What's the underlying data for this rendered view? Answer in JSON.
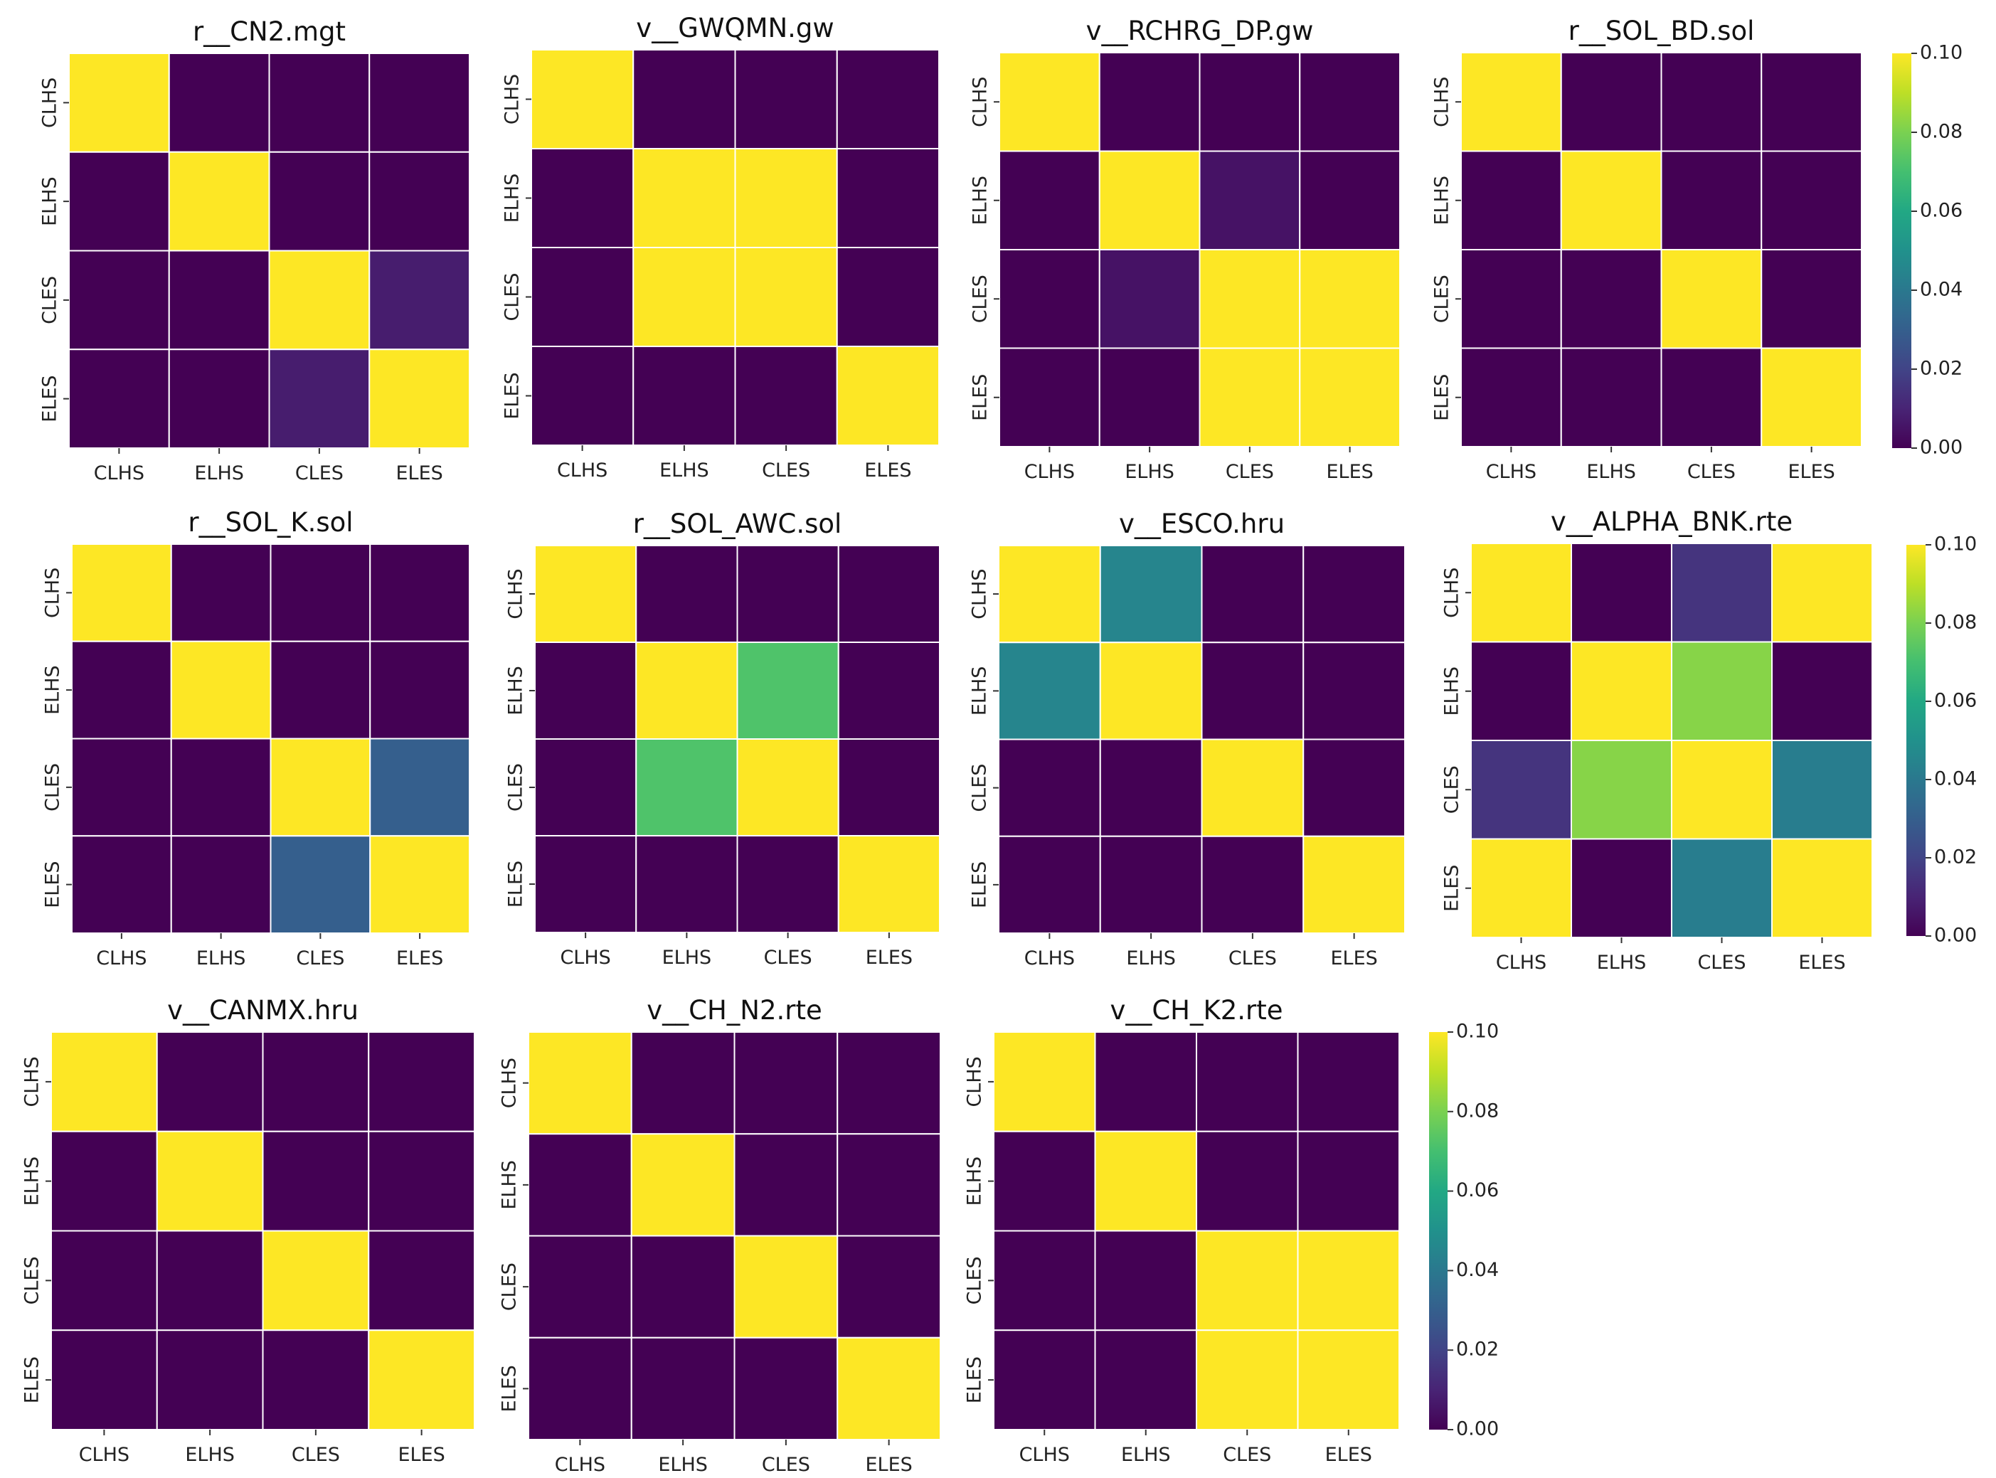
{
  "chart_data": [
    {
      "type": "heatmap",
      "title": "r__CN2.mgt",
      "x_labels": [
        "CLHS",
        "ELHS",
        "CLES",
        "ELES"
      ],
      "y_labels": [
        "CLHS",
        "ELHS",
        "CLES",
        "ELES"
      ],
      "values": [
        [
          0.1,
          0,
          0,
          0
        ],
        [
          0,
          0.1,
          0,
          0
        ],
        [
          0,
          0,
          0.1,
          0.008
        ],
        [
          0,
          0,
          0.008,
          0.1
        ]
      ]
    },
    {
      "type": "heatmap",
      "title": "v__GWQMN.gw",
      "x_labels": [
        "CLHS",
        "ELHS",
        "CLES",
        "ELES"
      ],
      "y_labels": [
        "CLHS",
        "ELHS",
        "CLES",
        "ELES"
      ],
      "values": [
        [
          0.1,
          0,
          0,
          0
        ],
        [
          0,
          0.1,
          0.1,
          0
        ],
        [
          0,
          0.1,
          0.1,
          0
        ],
        [
          0,
          0,
          0,
          0.1
        ]
      ]
    },
    {
      "type": "heatmap",
      "title": "v__RCHRG_DP.gw",
      "x_labels": [
        "CLHS",
        "ELHS",
        "CLES",
        "ELES"
      ],
      "y_labels": [
        "CLHS",
        "ELHS",
        "CLES",
        "ELES"
      ],
      "values": [
        [
          0.1,
          0,
          0,
          0
        ],
        [
          0,
          0.1,
          0.005,
          0
        ],
        [
          0,
          0.005,
          0.1,
          0.1
        ],
        [
          0,
          0,
          0.1,
          0.1
        ]
      ]
    },
    {
      "type": "heatmap",
      "title": "r__SOL_BD.sol",
      "x_labels": [
        "CLHS",
        "ELHS",
        "CLES",
        "ELES"
      ],
      "y_labels": [
        "CLHS",
        "ELHS",
        "CLES",
        "ELES"
      ],
      "values": [
        [
          0.1,
          0,
          0,
          0
        ],
        [
          0,
          0.1,
          0,
          0
        ],
        [
          0,
          0,
          0.1,
          0
        ],
        [
          0,
          0,
          0,
          0.1
        ]
      ]
    },
    {
      "type": "heatmap",
      "title": "r__SOL_K.sol",
      "x_labels": [
        "CLHS",
        "ELHS",
        "CLES",
        "ELES"
      ],
      "y_labels": [
        "CLHS",
        "ELHS",
        "CLES",
        "ELES"
      ],
      "values": [
        [
          0.1,
          0,
          0,
          0
        ],
        [
          0,
          0.1,
          0,
          0
        ],
        [
          0,
          0,
          0.1,
          0.03
        ],
        [
          0,
          0,
          0.03,
          0.1
        ]
      ]
    },
    {
      "type": "heatmap",
      "title": "r__SOL_AWC.sol",
      "x_labels": [
        "CLHS",
        "ELHS",
        "CLES",
        "ELES"
      ],
      "y_labels": [
        "CLHS",
        "ELHS",
        "CLES",
        "ELES"
      ],
      "values": [
        [
          0.1,
          0,
          0,
          0
        ],
        [
          0,
          0.1,
          0.072,
          0
        ],
        [
          0,
          0.072,
          0.1,
          0
        ],
        [
          0,
          0,
          0,
          0.1
        ]
      ]
    },
    {
      "type": "heatmap",
      "title": "v__ESCO.hru",
      "x_labels": [
        "CLHS",
        "ELHS",
        "CLES",
        "ELES"
      ],
      "y_labels": [
        "CLHS",
        "ELHS",
        "CLES",
        "ELES"
      ],
      "values": [
        [
          0.1,
          0.045,
          0,
          0
        ],
        [
          0.045,
          0.1,
          0,
          0
        ],
        [
          0,
          0,
          0.1,
          0
        ],
        [
          0,
          0,
          0,
          0.1
        ]
      ]
    },
    {
      "type": "heatmap",
      "title": "v__ALPHA_BNK.rte",
      "x_labels": [
        "CLHS",
        "ELHS",
        "CLES",
        "ELES"
      ],
      "y_labels": [
        "CLHS",
        "ELHS",
        "CLES",
        "ELES"
      ],
      "values": [
        [
          0.1,
          0,
          0.015,
          0.1
        ],
        [
          0,
          0.1,
          0.082,
          0
        ],
        [
          0.015,
          0.082,
          0.1,
          0.042
        ],
        [
          0.1,
          0,
          0.042,
          0.1
        ]
      ]
    },
    {
      "type": "heatmap",
      "title": "v__CANMX.hru",
      "x_labels": [
        "CLHS",
        "ELHS",
        "CLES",
        "ELES"
      ],
      "y_labels": [
        "CLHS",
        "ELHS",
        "CLES",
        "ELES"
      ],
      "values": [
        [
          0.1,
          0,
          0,
          0
        ],
        [
          0,
          0.1,
          0,
          0
        ],
        [
          0,
          0,
          0.1,
          0
        ],
        [
          0,
          0,
          0,
          0.1
        ]
      ]
    },
    {
      "type": "heatmap",
      "title": "v__CH_N2.rte",
      "x_labels": [
        "CLHS",
        "ELHS",
        "CLES",
        "ELES"
      ],
      "y_labels": [
        "CLHS",
        "ELHS",
        "CLES",
        "ELES"
      ],
      "values": [
        [
          0.1,
          0,
          0,
          0
        ],
        [
          0,
          0.1,
          0,
          0
        ],
        [
          0,
          0,
          0.1,
          0
        ],
        [
          0,
          0,
          0,
          0.1
        ]
      ]
    },
    {
      "type": "heatmap",
      "title": "v__CH_K2.rte",
      "x_labels": [
        "CLHS",
        "ELHS",
        "CLES",
        "ELES"
      ],
      "y_labels": [
        "CLHS",
        "ELHS",
        "CLES",
        "ELES"
      ],
      "values": [
        [
          0.1,
          0,
          0,
          0
        ],
        [
          0,
          0.1,
          0,
          0
        ],
        [
          0,
          0,
          0.1,
          0.1
        ],
        [
          0,
          0,
          0.1,
          0.1
        ]
      ]
    }
  ],
  "colorbar": {
    "colormap": "viridis",
    "vmin": 0.0,
    "vmax": 0.1,
    "ticks": [
      0.0,
      0.02,
      0.04,
      0.06,
      0.08,
      0.1
    ],
    "tick_labels": [
      "0.00",
      "0.02",
      "0.04",
      "0.06",
      "0.08",
      "0.10"
    ],
    "count": 3
  }
}
